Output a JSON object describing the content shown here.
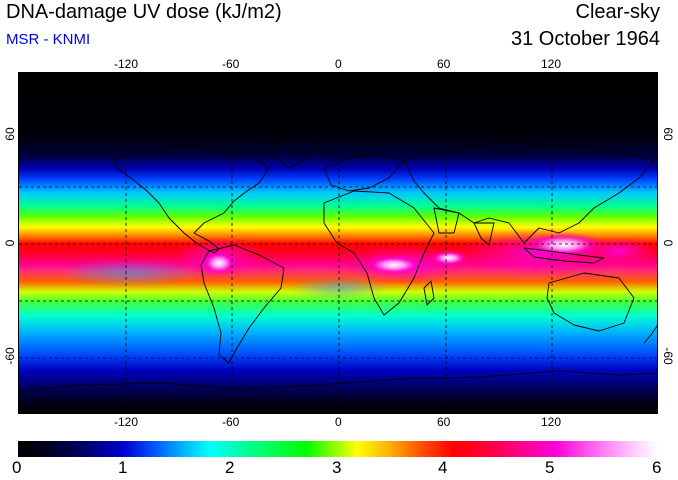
{
  "header": {
    "title": "DNA-damage UV dose (kJ/m2)",
    "source": "MSR - KNMI",
    "condition": "Clear-sky",
    "date": "31 October 1964"
  },
  "map": {
    "lon_labels": [
      "-120",
      "-60",
      "0",
      "60",
      "120"
    ],
    "lat_labels": [
      "60",
      "0",
      "-60"
    ]
  },
  "colorbar": {
    "labels": [
      "0",
      "1",
      "2",
      "3",
      "4",
      "5",
      "6"
    ]
  },
  "colors": {
    "subtitle": "#0000ee",
    "scale_min": "#000000",
    "scale_max": "#ffffff"
  }
}
